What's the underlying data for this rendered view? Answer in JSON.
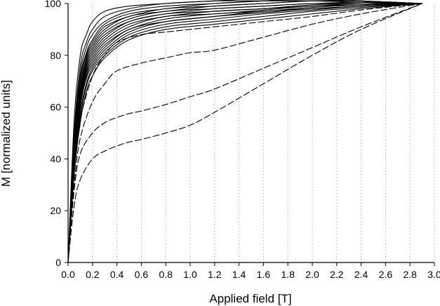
{
  "chart_data": {
    "type": "line",
    "xlabel": "Applied field [T]",
    "ylabel": "M [normalized units]",
    "xlim": [
      0,
      3.0
    ],
    "ylim": [
      0,
      100
    ],
    "xticks": [
      "0.0",
      "0.2",
      "0.4",
      "0.6",
      "0.8",
      "1.0",
      "1.2",
      "1.4",
      "1.6",
      "1.8",
      "2.0",
      "2.2",
      "2.4",
      "2.6",
      "2.8",
      "3.0"
    ],
    "yticks": [
      "0",
      "20",
      "40",
      "60",
      "80",
      "100"
    ],
    "grid": "vertical-dotted",
    "legend": "none",
    "line_color": "#000000",
    "series": [
      {
        "style": "solid",
        "x": [
          0,
          0.05,
          0.1,
          0.15,
          0.2,
          0.3,
          0.5,
          0.8,
          1.2,
          1.6,
          2.0,
          2.4,
          2.9
        ],
        "y": [
          0,
          55,
          80,
          88,
          93,
          97,
          99,
          100,
          101,
          101,
          101,
          100.5,
          100
        ]
      },
      {
        "style": "solid",
        "x": [
          0,
          0.05,
          0.1,
          0.15,
          0.2,
          0.3,
          0.5,
          0.8,
          1.2,
          1.6,
          2.0,
          2.4,
          2.9
        ],
        "y": [
          0,
          50,
          76,
          85,
          90,
          95,
          98,
          100,
          101,
          102,
          102,
          101,
          100
        ]
      },
      {
        "style": "solid",
        "x": [
          0,
          0.05,
          0.1,
          0.15,
          0.2,
          0.3,
          0.5,
          0.8,
          1.2,
          1.6,
          2.0,
          2.4,
          2.9
        ],
        "y": [
          0,
          48,
          73,
          83,
          88,
          93,
          97,
          99,
          100,
          101,
          102,
          101,
          100
        ]
      },
      {
        "style": "solid",
        "x": [
          0,
          0.05,
          0.1,
          0.15,
          0.2,
          0.3,
          0.5,
          0.8,
          1.2,
          1.6,
          2.0,
          2.4,
          2.9
        ],
        "y": [
          0,
          46,
          71,
          81,
          86,
          92,
          96,
          98,
          100,
          101,
          101.5,
          101,
          100
        ]
      },
      {
        "style": "solid",
        "x": [
          0,
          0.05,
          0.1,
          0.15,
          0.2,
          0.3,
          0.5,
          0.8,
          1.2,
          1.6,
          2.0,
          2.4,
          2.9
        ],
        "y": [
          0,
          45,
          70,
          80,
          85,
          91,
          95,
          98,
          99,
          100,
          101,
          100.5,
          100
        ]
      },
      {
        "style": "solid",
        "x": [
          0,
          0.05,
          0.1,
          0.15,
          0.2,
          0.3,
          0.5,
          0.8,
          1.2,
          1.6,
          2.0,
          2.4,
          2.9
        ],
        "y": [
          0,
          44,
          68,
          79,
          84,
          90,
          95,
          97,
          99,
          100,
          101,
          101,
          100
        ]
      },
      {
        "style": "solid",
        "x": [
          0,
          0.05,
          0.1,
          0.15,
          0.2,
          0.3,
          0.5,
          0.8,
          1.2,
          1.6,
          2.0,
          2.4,
          2.9
        ],
        "y": [
          0,
          43,
          67,
          78,
          83,
          89,
          94,
          97,
          98,
          99,
          100,
          100.5,
          100
        ]
      },
      {
        "style": "solid",
        "x": [
          0,
          0.05,
          0.1,
          0.15,
          0.2,
          0.3,
          0.5,
          0.8,
          1.2,
          1.6,
          2.0,
          2.4,
          2.9
        ],
        "y": [
          0,
          42,
          66,
          77,
          82,
          88,
          93,
          96,
          98,
          99,
          100,
          100,
          100
        ]
      },
      {
        "style": "solid",
        "x": [
          0,
          0.05,
          0.1,
          0.15,
          0.2,
          0.3,
          0.5,
          0.8,
          1.2,
          1.6,
          2.0,
          2.4,
          2.9
        ],
        "y": [
          0,
          41,
          65,
          76,
          81,
          87,
          93,
          96,
          97,
          98,
          99.5,
          100,
          100
        ]
      },
      {
        "style": "solid",
        "x": [
          0,
          0.05,
          0.1,
          0.15,
          0.2,
          0.3,
          0.5,
          0.8,
          1.2,
          1.6,
          2.0,
          2.4,
          2.9
        ],
        "y": [
          0,
          40,
          64,
          75,
          80,
          86,
          92,
          95,
          97,
          98,
          99,
          100,
          100
        ]
      },
      {
        "style": "solid",
        "x": [
          0,
          0.05,
          0.1,
          0.15,
          0.2,
          0.3,
          0.5,
          0.8,
          1.2,
          1.6,
          2.0,
          2.4,
          2.9
        ],
        "y": [
          0,
          40,
          63,
          74,
          79,
          85,
          91,
          95,
          96,
          97.5,
          99,
          99.5,
          100
        ]
      },
      {
        "style": "solid",
        "x": [
          0,
          0.05,
          0.1,
          0.15,
          0.2,
          0.3,
          0.5,
          0.8,
          1.2,
          1.6,
          2.0,
          2.4,
          2.9
        ],
        "y": [
          0,
          39,
          62,
          73,
          78,
          84,
          90,
          94,
          96,
          97,
          98.5,
          99.5,
          100
        ]
      },
      {
        "style": "solid",
        "x": [
          0,
          0.05,
          0.1,
          0.15,
          0.2,
          0.3,
          0.5,
          0.8,
          1.2,
          1.6,
          2.0,
          2.4,
          2.9
        ],
        "y": [
          0,
          38,
          61,
          72,
          77,
          83,
          90,
          93,
          95,
          97,
          98,
          99,
          100
        ]
      },
      {
        "style": "solid",
        "x": [
          0,
          0.05,
          0.1,
          0.15,
          0.2,
          0.3,
          0.5,
          0.8,
          1.2,
          1.6,
          2.0,
          2.4,
          2.9
        ],
        "y": [
          0,
          37,
          60,
          71,
          76,
          82,
          89,
          93,
          95,
          96.5,
          98,
          99,
          100
        ]
      },
      {
        "style": "solid",
        "x": [
          0,
          0.05,
          0.1,
          0.15,
          0.2,
          0.3,
          0.5,
          0.8,
          1.2,
          1.6,
          2.0,
          2.4,
          2.9
        ],
        "y": [
          0,
          36,
          58,
          69,
          75,
          81,
          88,
          92,
          94,
          96,
          97.5,
          99,
          100
        ]
      },
      {
        "style": "solid",
        "x": [
          0,
          0.05,
          0.1,
          0.15,
          0.2,
          0.3,
          0.5,
          0.8,
          1.2,
          1.6,
          2.0,
          2.4,
          2.9
        ],
        "y": [
          0,
          35,
          56,
          68,
          74,
          80,
          87,
          91,
          93,
          95,
          97,
          98.5,
          100
        ]
      },
      {
        "style": "solid",
        "x": [
          0,
          0.05,
          0.1,
          0.15,
          0.2,
          0.3,
          0.5,
          0.8,
          1.2,
          1.6,
          2.0,
          2.4,
          2.9
        ],
        "y": [
          0,
          34,
          54,
          66,
          72,
          79,
          86,
          90,
          92,
          94,
          96,
          98,
          100
        ]
      },
      {
        "style": "dashed",
        "x": [
          0,
          0.05,
          0.1,
          0.2,
          0.3,
          0.4,
          0.6,
          0.8,
          1.2,
          1.6,
          2.0,
          2.4,
          2.9
        ],
        "y": [
          0,
          35,
          55,
          72,
          80,
          85,
          88,
          89,
          91,
          93,
          95,
          97.5,
          100
        ]
      },
      {
        "style": "dashed",
        "x": [
          0,
          0.05,
          0.1,
          0.2,
          0.3,
          0.4,
          0.6,
          0.8,
          1.0,
          1.2,
          1.6,
          2.0,
          2.4,
          2.9
        ],
        "y": [
          0,
          30,
          48,
          62,
          69,
          74,
          77,
          79,
          81,
          82,
          87,
          92,
          96,
          100
        ]
      },
      {
        "style": "dashed",
        "x": [
          0,
          0.05,
          0.1,
          0.2,
          0.3,
          0.4,
          0.5,
          0.6,
          0.8,
          1.0,
          1.2,
          1.6,
          2.0,
          2.4,
          2.9
        ],
        "y": [
          0,
          28,
          42,
          50,
          54,
          56,
          57.5,
          58.5,
          61,
          64,
          67,
          75,
          83,
          91,
          100
        ]
      },
      {
        "style": "dashed",
        "x": [
          0,
          0.05,
          0.1,
          0.2,
          0.3,
          0.4,
          0.5,
          0.6,
          0.8,
          1.0,
          1.2,
          1.6,
          2.0,
          2.4,
          2.9
        ],
        "y": [
          0,
          22,
          32,
          40,
          43,
          45,
          46.5,
          47.5,
          50,
          53,
          58,
          69,
          80,
          90,
          100
        ]
      }
    ]
  }
}
